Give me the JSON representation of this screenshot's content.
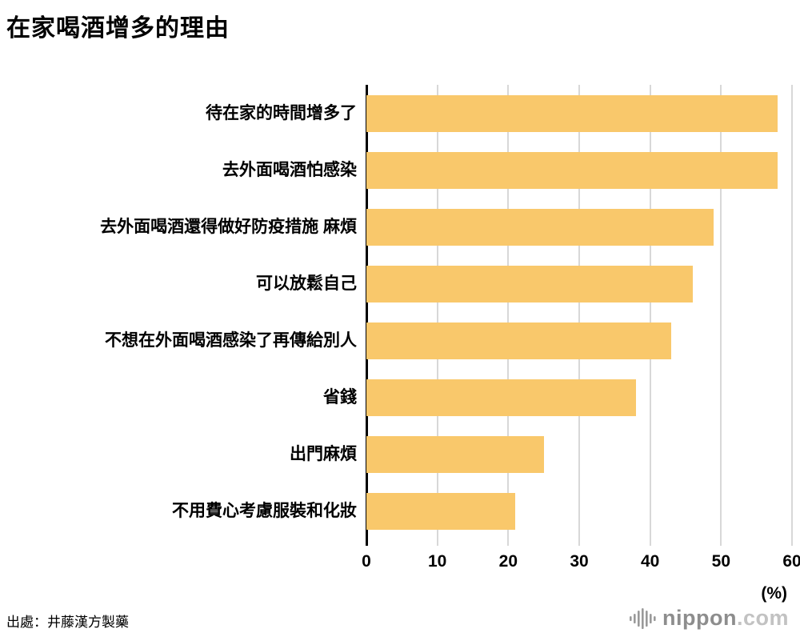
{
  "title": "在家喝酒增多的理由",
  "source": "出處：井藤漢方製藥",
  "logo": {
    "name": "nippon",
    "tld": ".com"
  },
  "chart_data": {
    "type": "bar",
    "orientation": "horizontal",
    "title": "在家喝酒增多的理由",
    "categories": [
      "待在家的時間增多了",
      "去外面喝酒怕感染",
      "去外面喝酒還得做好防疫措施 麻煩",
      "可以放鬆自己",
      "不想在外面喝酒感染了再傳給別人",
      "省錢",
      "出門麻煩",
      "不用費心考慮服裝和化妝"
    ],
    "values": [
      58,
      58,
      49,
      46,
      43,
      38,
      25,
      21
    ],
    "xlim": [
      0,
      60
    ],
    "xticks": [
      0,
      10,
      20,
      30,
      40,
      50,
      60
    ],
    "unit_label": "(%)",
    "bar_color": "#F9C86B",
    "grid": true,
    "legend": false
  }
}
